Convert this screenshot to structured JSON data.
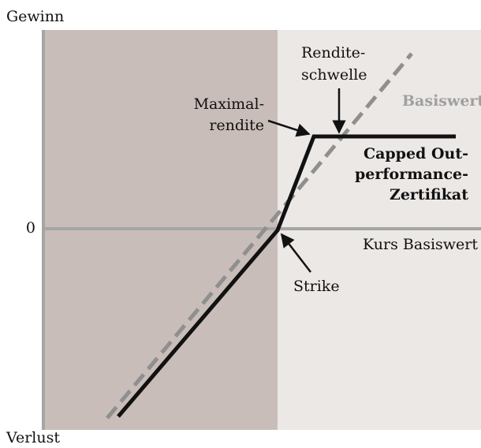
{
  "axes": {
    "y_top": "Gewinn",
    "y_bottom": "Verlust",
    "zero": "0",
    "x": "Kurs Basiswert"
  },
  "labels": {
    "strike": "Strike",
    "max_return": [
      "Maximal-",
      "rendite"
    ],
    "return_threshold": [
      "Rendite-",
      "schwelle"
    ],
    "underlying": "Basiswert",
    "certificate": [
      "Capped Out-",
      "performance-",
      "Zertifikat"
    ]
  }
}
